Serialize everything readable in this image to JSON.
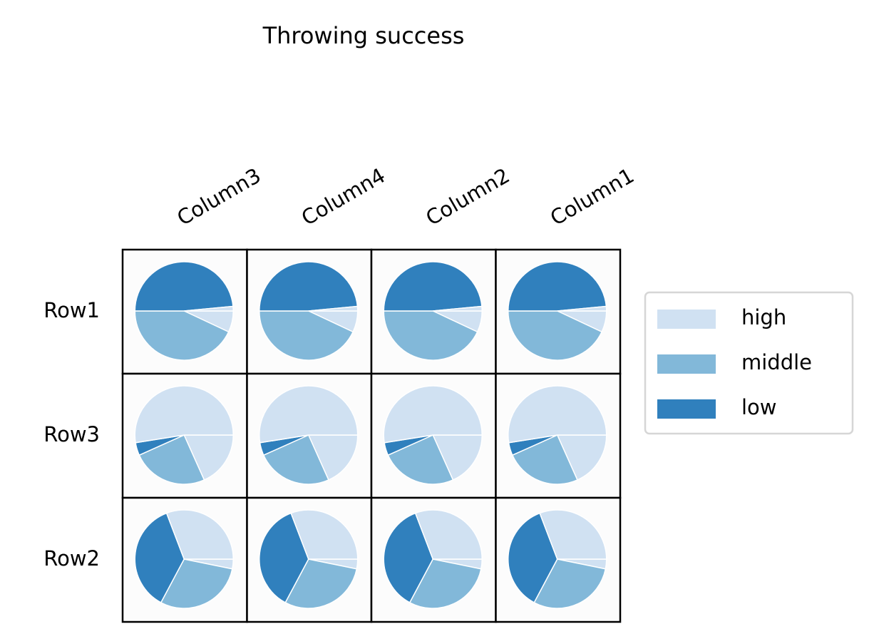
{
  "chart_data": {
    "type": "pie",
    "title": "Throwing success",
    "columns": [
      "Column3",
      "Column4",
      "Column2",
      "Column1"
    ],
    "rows": [
      "Row1",
      "Row3",
      "Row2"
    ],
    "legend": [
      {
        "name": "high",
        "color": "#d0e1f2"
      },
      {
        "name": "middle",
        "color": "#82b8d9"
      },
      {
        "name": "low",
        "color": "#3080bd"
      }
    ],
    "values": [
      [
        [
          7,
          43,
          48.5,
          1.5
        ],
        [
          7,
          43,
          48.5,
          1.5
        ],
        [
          7,
          43,
          48.5,
          1.5
        ],
        [
          7,
          43,
          48.5,
          1.5
        ]
      ],
      [
        [
          18.3,
          25,
          4.2,
          52.5
        ],
        [
          18.3,
          25,
          4.2,
          52.5
        ],
        [
          18.3,
          25,
          4.2,
          52.5
        ],
        [
          18.3,
          25,
          4.2,
          52.5
        ]
      ],
      [
        [
          3.2,
          29.6,
          36.4,
          30.8
        ],
        [
          3.2,
          29.6,
          36.4,
          30.8
        ],
        [
          3.2,
          29.6,
          36.4,
          30.8
        ],
        [
          3.2,
          29.6,
          36.4,
          30.8
        ]
      ]
    ]
  }
}
